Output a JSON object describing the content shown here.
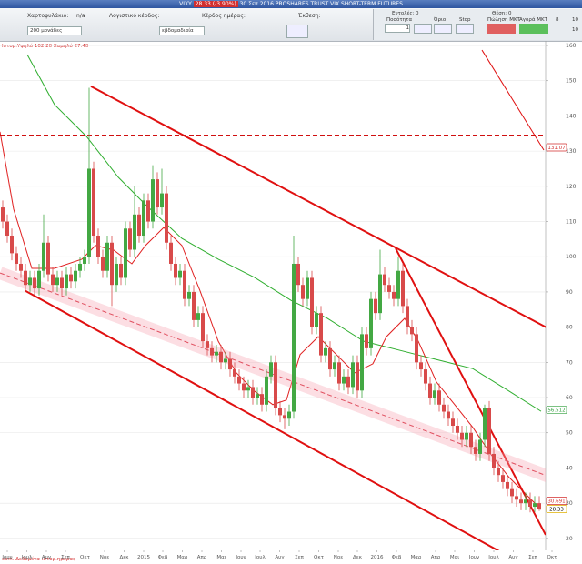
{
  "header": {
    "symbol": "VIXY",
    "price": "28.33 (-3.90%)",
    "title": "30 Σεπ 2016 PROSHARES TRUST VIX SHORT-TERM FUTURES"
  },
  "toolbar": {
    "portfolio_label": "Χαρτοφυλάκιο:",
    "portfolio_value": "n/a",
    "pnl_label": "Λογιστικό κέρδος:",
    "day_label": "Κέρδος ημέρας:",
    "exposure_label": "Έκθεση:",
    "orders_label": "Εντολές:",
    "orders_value": "0",
    "position_label": "Θέση:",
    "position_value": "0",
    "units": "200 μονάδες",
    "period": "εβδομαδιαία"
  },
  "order_panel": {
    "quantity_label": "Ποσότητα",
    "limit_label": "Όριο",
    "stop_label": "Stop",
    "sell_label": "Πώληση ΜΚΤ",
    "buy_label": "Αγορά ΜΚΤ",
    "quantity": "1",
    "qty_a": "8",
    "qty_b": "10",
    "qty_c": "10"
  },
  "chart_data": {
    "type": "candlestick",
    "annotation": "Ιστορ.Υψηλό 102.20 Χαμηλό 27.40",
    "footer": "com. Δεδομένα ιστορ.ημέρας",
    "up_color": "#43a843",
    "down_color": "#d84a4a",
    "open": [
      114,
      110,
      106,
      101,
      98,
      96,
      92,
      94,
      91,
      96,
      104,
      95,
      92,
      94,
      91,
      95,
      93,
      96,
      98,
      100,
      125,
      106,
      100,
      96,
      104,
      92,
      98,
      94,
      108,
      102,
      112,
      106,
      116,
      110,
      122,
      114,
      118,
      104,
      98,
      94,
      96,
      88,
      90,
      82,
      84,
      76,
      74,
      72,
      73,
      70,
      71,
      68,
      66,
      64,
      62,
      63,
      60,
      61,
      58,
      66,
      70,
      57,
      55,
      54,
      56,
      98,
      92,
      88,
      94,
      80,
      84,
      72,
      74,
      68,
      70,
      64,
      66,
      63,
      70,
      62,
      78,
      74,
      88,
      84,
      95,
      92,
      90,
      88,
      96,
      86,
      80,
      78,
      70,
      68,
      64,
      60,
      62,
      58,
      56,
      54,
      52,
      50,
      48,
      50,
      46,
      44,
      48,
      57,
      44,
      40,
      38,
      36,
      34,
      32,
      31,
      30,
      31,
      29,
      30
    ],
    "high": [
      116,
      112,
      108,
      103,
      100,
      98,
      96,
      96,
      98,
      112,
      106,
      97,
      96,
      96,
      97,
      97,
      98,
      100,
      102,
      148,
      127,
      108,
      102,
      106,
      106,
      100,
      100,
      110,
      110,
      120,
      114,
      118,
      118,
      126,
      124,
      125,
      120,
      106,
      100,
      98,
      98,
      92,
      92,
      86,
      86,
      78,
      76,
      75,
      75,
      73,
      73,
      70,
      68,
      66,
      65,
      65,
      63,
      63,
      68,
      72,
      72,
      59,
      57,
      58,
      106,
      100,
      94,
      96,
      96,
      86,
      86,
      76,
      76,
      72,
      72,
      68,
      68,
      72,
      72,
      80,
      80,
      90,
      90,
      102,
      97,
      94,
      92,
      100,
      98,
      88,
      82,
      80,
      72,
      70,
      66,
      64,
      64,
      60,
      58,
      56,
      54,
      52,
      52,
      52,
      48,
      50,
      58,
      59,
      46,
      42,
      40,
      38,
      36,
      34,
      33,
      33,
      33,
      32,
      32
    ],
    "low": [
      108,
      104,
      99,
      96,
      94,
      90,
      90,
      89,
      89,
      94,
      93,
      90,
      90,
      89,
      89,
      91,
      91,
      94,
      96,
      98,
      104,
      98,
      94,
      94,
      86,
      90,
      92,
      92,
      100,
      100,
      104,
      104,
      108,
      108,
      112,
      112,
      102,
      96,
      92,
      92,
      86,
      86,
      80,
      80,
      74,
      72,
      70,
      70,
      68,
      68,
      66,
      64,
      62,
      60,
      60,
      58,
      58,
      56,
      56,
      64,
      55,
      53,
      51,
      52,
      54,
      90,
      86,
      86,
      78,
      78,
      70,
      70,
      66,
      66,
      62,
      62,
      61,
      61,
      60,
      60,
      72,
      72,
      82,
      82,
      90,
      88,
      86,
      86,
      84,
      78,
      76,
      68,
      66,
      62,
      58,
      58,
      56,
      54,
      52,
      50,
      48,
      46,
      46,
      44,
      42,
      42,
      46,
      42,
      38,
      36,
      34,
      32,
      30,
      29,
      28,
      28,
      27.4,
      27.5,
      27.8
    ],
    "close": [
      110,
      106,
      101,
      98,
      96,
      92,
      94,
      91,
      96,
      104,
      95,
      92,
      94,
      91,
      95,
      93,
      96,
      98,
      100,
      125,
      106,
      100,
      96,
      104,
      92,
      98,
      94,
      108,
      102,
      112,
      106,
      116,
      110,
      122,
      114,
      118,
      104,
      98,
      94,
      96,
      88,
      90,
      82,
      84,
      76,
      74,
      72,
      73,
      70,
      71,
      68,
      66,
      64,
      62,
      63,
      60,
      61,
      58,
      66,
      70,
      57,
      55,
      54,
      56,
      98,
      92,
      88,
      94,
      80,
      84,
      72,
      74,
      68,
      70,
      64,
      66,
      63,
      70,
      62,
      78,
      74,
      88,
      84,
      95,
      92,
      90,
      88,
      96,
      86,
      80,
      78,
      70,
      68,
      64,
      60,
      62,
      58,
      56,
      54,
      52,
      50,
      48,
      50,
      46,
      44,
      48,
      57,
      44,
      40,
      38,
      36,
      34,
      32,
      31,
      30,
      31,
      29,
      30,
      28.33
    ],
    "xlim": [
      -0.6,
      119.4
    ],
    "xticks": [
      {
        "value": 1,
        "label": "Ιουν"
      },
      {
        "value": 5.3,
        "label": "Ιουλ"
      },
      {
        "value": 9.6,
        "label": "Αυγ"
      },
      {
        "value": 13.8,
        "label": "Σεπ"
      },
      {
        "value": 18.1,
        "label": "Οκτ"
      },
      {
        "value": 22.4,
        "label": "Νοε"
      },
      {
        "value": 26.7,
        "label": "Δεκ"
      },
      {
        "value": 31,
        "label": "2015"
      },
      {
        "value": 35.2,
        "label": "Φεβ"
      },
      {
        "value": 39.5,
        "label": "Μαρ"
      },
      {
        "value": 43.8,
        "label": "Απρ"
      },
      {
        "value": 48.1,
        "label": "Μαι"
      },
      {
        "value": 52.4,
        "label": "Ιουν"
      },
      {
        "value": 56.6,
        "label": "Ιουλ"
      },
      {
        "value": 60.9,
        "label": "Αυγ"
      },
      {
        "value": 65.2,
        "label": "Σεπ"
      },
      {
        "value": 69.5,
        "label": "Οκτ"
      },
      {
        "value": 73.8,
        "label": "Νοε"
      },
      {
        "value": 78,
        "label": "Δεκ"
      },
      {
        "value": 82.3,
        "label": "2016"
      },
      {
        "value": 86.6,
        "label": "Φεβ"
      },
      {
        "value": 90.9,
        "label": "Μαρ"
      },
      {
        "value": 95.2,
        "label": "Απρ"
      },
      {
        "value": 99.4,
        "label": "Μαι"
      },
      {
        "value": 103.7,
        "label": "Ιουν"
      },
      {
        "value": 108,
        "label": "Ιουλ"
      },
      {
        "value": 112.3,
        "label": "Αυγ"
      },
      {
        "value": 116.6,
        "label": "Σεπ"
      },
      {
        "value": 120.8,
        "label": "Οκτ"
      }
    ],
    "ylim": [
      16.6,
      161.3
    ],
    "yticks": [
      20,
      30,
      40,
      50,
      60,
      70,
      80,
      90,
      100,
      110,
      120,
      130,
      140,
      150,
      160
    ],
    "grid": true,
    "price_labels": [
      {
        "value": 131.07,
        "label": "131.07",
        "color": "#d32f2f"
      },
      {
        "value": 56.512,
        "label": "56.512",
        "color": "#2e9e3a"
      },
      {
        "value": 30.691,
        "label": "30.691",
        "color": "#d32f2f"
      },
      {
        "value": 28.33,
        "label": "28.33",
        "color": "#e0b000"
      }
    ],
    "lines": [
      {
        "color": "#2fae2f",
        "width": 1,
        "x": [
          5.4,
          11.4,
          18.4,
          25.4,
          31.4,
          39.4,
          47.4,
          55.4,
          63.4,
          71.4,
          79.4,
          87.4,
          95.4,
          103.4,
          111.4,
          118.4
        ],
        "values": [
          157.4,
          143.2,
          134.2,
          122.6,
          114.8,
          105.2,
          99.3,
          94.1,
          87.6,
          82.5,
          76,
          73.4,
          70.8,
          68.2,
          61.8,
          56.1
        ]
      },
      {
        "color": "#e02020",
        "width": 1,
        "x": [
          -0.6,
          2.4,
          6.4,
          11.4,
          17.4,
          20.4,
          24.4,
          28.4,
          31.4,
          35.4,
          39.4,
          43.4,
          47.4,
          51.4,
          55.4,
          59.4,
          62.4,
          65.4,
          69.4,
          73.4,
          77.4,
          81.4,
          84.4,
          88.4,
          91.4,
          95.4,
          99.4,
          103.4,
          107.4,
          111.4,
          115.4,
          118.4
        ],
        "values": [
          135.5,
          113.5,
          96.7,
          96.7,
          99.3,
          103.2,
          101.9,
          98,
          103.2,
          108.3,
          103.2,
          90.3,
          76,
          67,
          61.8,
          58,
          59.3,
          72.2,
          77.3,
          72.2,
          67,
          69.6,
          77.3,
          82.5,
          76,
          64.4,
          58,
          51.5,
          43.8,
          37.3,
          32.1,
          28.2
        ]
      },
      {
        "color": "#e01010",
        "width": 2,
        "x": [
          19.4,
          123.4
        ],
        "values": [
          148.4,
          77.3
        ]
      },
      {
        "color": "#e01010",
        "width": 2,
        "x": [
          86.4,
          119.4
        ],
        "values": [
          102.4,
          21
        ]
      },
      {
        "color": "#e01010",
        "width": 2,
        "x": [
          5,
          111.4
        ],
        "values": [
          90.3,
          14.8
        ]
      },
      {
        "color": "#e01010",
        "width": 1,
        "x": [
          105.4,
          119
        ],
        "values": [
          158.7,
          130.3
        ]
      },
      {
        "color": "#d01010",
        "width": 1.5,
        "dash": true,
        "x": [
          -0.6,
          119.4
        ],
        "values": [
          134.5,
          134.5
        ]
      },
      {
        "color": "#e05060",
        "width": 1,
        "dash": true,
        "glow": true,
        "x": [
          -0.6,
          123.4
        ],
        "values": [
          95.4,
          36
        ]
      }
    ]
  }
}
